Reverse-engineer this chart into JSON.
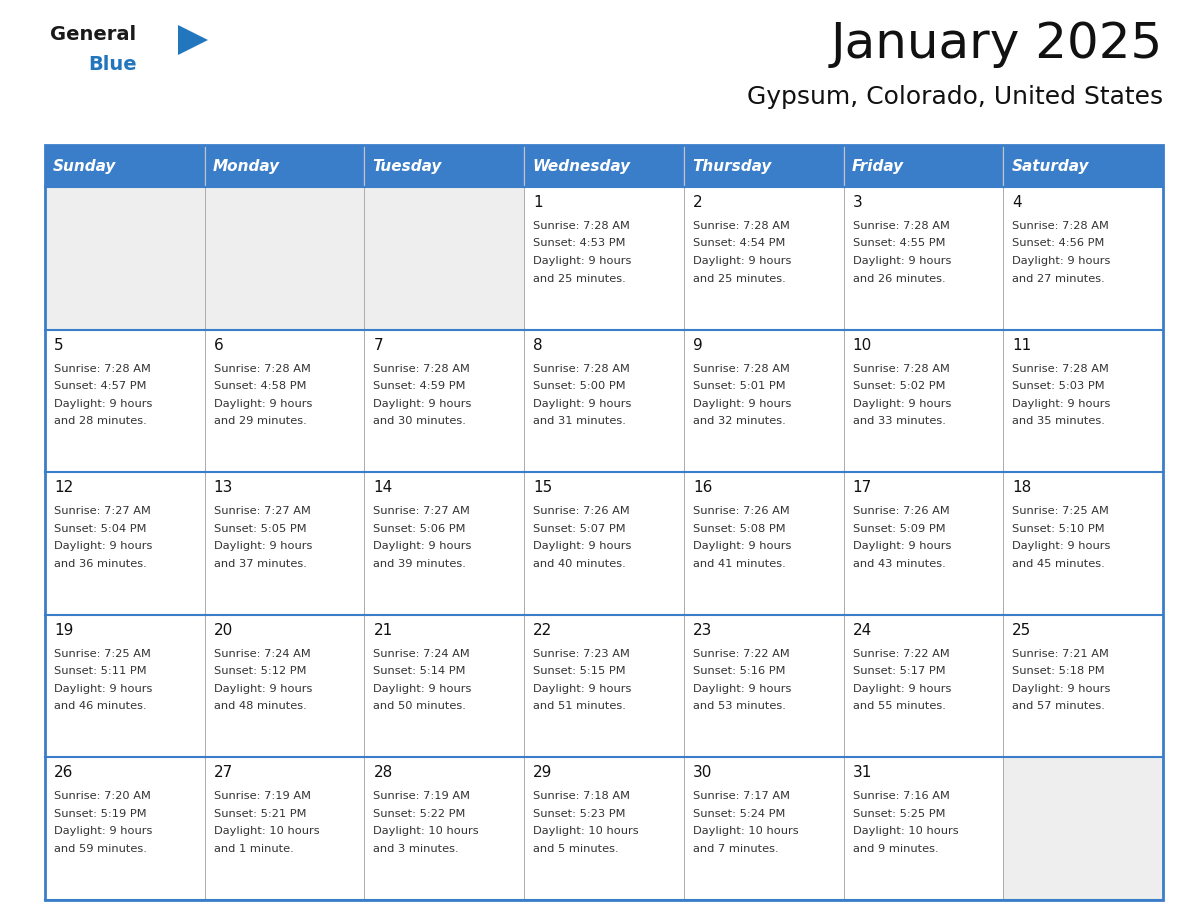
{
  "title": "January 2025",
  "subtitle": "Gypsum, Colorado, United States",
  "days_of_week": [
    "Sunday",
    "Monday",
    "Tuesday",
    "Wednesday",
    "Thursday",
    "Friday",
    "Saturday"
  ],
  "header_bg": "#3a7dc9",
  "header_text": "#ffffff",
  "cell_bg_empty": "#eeeeee",
  "cell_bg_filled": "#ffffff",
  "border_color": "#3a7dc9",
  "grid_color": "#aaaaaa",
  "text_color": "#333333",
  "day_num_color": "#111111",
  "title_color": "#111111",
  "logo_black": "#1a1a1a",
  "logo_blue": "#2176bd",
  "calendar_data": [
    [
      {
        "day": null,
        "sunrise": null,
        "sunset": null,
        "daylight": null
      },
      {
        "day": null,
        "sunrise": null,
        "sunset": null,
        "daylight": null
      },
      {
        "day": null,
        "sunrise": null,
        "sunset": null,
        "daylight": null
      },
      {
        "day": 1,
        "sunrise": "7:28 AM",
        "sunset": "4:53 PM",
        "daylight": "9 hours\nand 25 minutes."
      },
      {
        "day": 2,
        "sunrise": "7:28 AM",
        "sunset": "4:54 PM",
        "daylight": "9 hours\nand 25 minutes."
      },
      {
        "day": 3,
        "sunrise": "7:28 AM",
        "sunset": "4:55 PM",
        "daylight": "9 hours\nand 26 minutes."
      },
      {
        "day": 4,
        "sunrise": "7:28 AM",
        "sunset": "4:56 PM",
        "daylight": "9 hours\nand 27 minutes."
      }
    ],
    [
      {
        "day": 5,
        "sunrise": "7:28 AM",
        "sunset": "4:57 PM",
        "daylight": "9 hours\nand 28 minutes."
      },
      {
        "day": 6,
        "sunrise": "7:28 AM",
        "sunset": "4:58 PM",
        "daylight": "9 hours\nand 29 minutes."
      },
      {
        "day": 7,
        "sunrise": "7:28 AM",
        "sunset": "4:59 PM",
        "daylight": "9 hours\nand 30 minutes."
      },
      {
        "day": 8,
        "sunrise": "7:28 AM",
        "sunset": "5:00 PM",
        "daylight": "9 hours\nand 31 minutes."
      },
      {
        "day": 9,
        "sunrise": "7:28 AM",
        "sunset": "5:01 PM",
        "daylight": "9 hours\nand 32 minutes."
      },
      {
        "day": 10,
        "sunrise": "7:28 AM",
        "sunset": "5:02 PM",
        "daylight": "9 hours\nand 33 minutes."
      },
      {
        "day": 11,
        "sunrise": "7:28 AM",
        "sunset": "5:03 PM",
        "daylight": "9 hours\nand 35 minutes."
      }
    ],
    [
      {
        "day": 12,
        "sunrise": "7:27 AM",
        "sunset": "5:04 PM",
        "daylight": "9 hours\nand 36 minutes."
      },
      {
        "day": 13,
        "sunrise": "7:27 AM",
        "sunset": "5:05 PM",
        "daylight": "9 hours\nand 37 minutes."
      },
      {
        "day": 14,
        "sunrise": "7:27 AM",
        "sunset": "5:06 PM",
        "daylight": "9 hours\nand 39 minutes."
      },
      {
        "day": 15,
        "sunrise": "7:26 AM",
        "sunset": "5:07 PM",
        "daylight": "9 hours\nand 40 minutes."
      },
      {
        "day": 16,
        "sunrise": "7:26 AM",
        "sunset": "5:08 PM",
        "daylight": "9 hours\nand 41 minutes."
      },
      {
        "day": 17,
        "sunrise": "7:26 AM",
        "sunset": "5:09 PM",
        "daylight": "9 hours\nand 43 minutes."
      },
      {
        "day": 18,
        "sunrise": "7:25 AM",
        "sunset": "5:10 PM",
        "daylight": "9 hours\nand 45 minutes."
      }
    ],
    [
      {
        "day": 19,
        "sunrise": "7:25 AM",
        "sunset": "5:11 PM",
        "daylight": "9 hours\nand 46 minutes."
      },
      {
        "day": 20,
        "sunrise": "7:24 AM",
        "sunset": "5:12 PM",
        "daylight": "9 hours\nand 48 minutes."
      },
      {
        "day": 21,
        "sunrise": "7:24 AM",
        "sunset": "5:14 PM",
        "daylight": "9 hours\nand 50 minutes."
      },
      {
        "day": 22,
        "sunrise": "7:23 AM",
        "sunset": "5:15 PM",
        "daylight": "9 hours\nand 51 minutes."
      },
      {
        "day": 23,
        "sunrise": "7:22 AM",
        "sunset": "5:16 PM",
        "daylight": "9 hours\nand 53 minutes."
      },
      {
        "day": 24,
        "sunrise": "7:22 AM",
        "sunset": "5:17 PM",
        "daylight": "9 hours\nand 55 minutes."
      },
      {
        "day": 25,
        "sunrise": "7:21 AM",
        "sunset": "5:18 PM",
        "daylight": "9 hours\nand 57 minutes."
      }
    ],
    [
      {
        "day": 26,
        "sunrise": "7:20 AM",
        "sunset": "5:19 PM",
        "daylight": "9 hours\nand 59 minutes."
      },
      {
        "day": 27,
        "sunrise": "7:19 AM",
        "sunset": "5:21 PM",
        "daylight": "10 hours\nand 1 minute."
      },
      {
        "day": 28,
        "sunrise": "7:19 AM",
        "sunset": "5:22 PM",
        "daylight": "10 hours\nand 3 minutes."
      },
      {
        "day": 29,
        "sunrise": "7:18 AM",
        "sunset": "5:23 PM",
        "daylight": "10 hours\nand 5 minutes."
      },
      {
        "day": 30,
        "sunrise": "7:17 AM",
        "sunset": "5:24 PM",
        "daylight": "10 hours\nand 7 minutes."
      },
      {
        "day": 31,
        "sunrise": "7:16 AM",
        "sunset": "5:25 PM",
        "daylight": "10 hours\nand 9 minutes."
      },
      {
        "day": null,
        "sunrise": null,
        "sunset": null,
        "daylight": null
      }
    ]
  ]
}
